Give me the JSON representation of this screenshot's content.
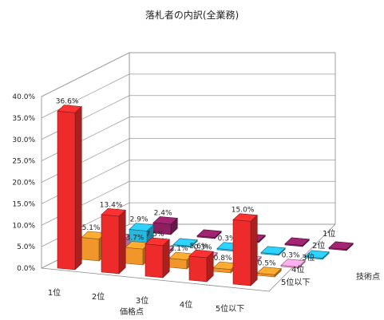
{
  "chart_data": {
    "type": "bar3d",
    "title": "落札者の内訳(全業務)",
    "x_axis_label": "価格点",
    "depth_axis_label": "技術点",
    "x_categories": [
      "1位",
      "2位",
      "3位",
      "4位",
      "5位以下"
    ],
    "depth_categories": [
      "1位",
      "2位",
      "3位",
      "4位",
      "5位以下"
    ],
    "y_ticks": [
      "0.0%",
      "5.0%",
      "10.0%",
      "15.0%",
      "20.0%",
      "25.0%",
      "30.0%",
      "35.0%",
      "40.0%"
    ],
    "y_range": [
      0,
      40
    ],
    "grid": true,
    "series": [
      {
        "depth": "1位",
        "color": "#ee2b2b",
        "values": [
          36.6,
          13.4,
          7.5,
          5.6,
          15.0
        ],
        "labels": [
          "36.6%",
          "13.4%",
          "7.5%",
          "5.6%",
          "15.0%"
        ]
      },
      {
        "depth": "2位",
        "color": "#f0962a",
        "values": [
          5.1,
          3.7,
          2.1,
          0.8,
          0.5
        ],
        "labels": [
          "5.1%",
          "3.7%",
          "2.1%",
          "0.8%",
          "0.5%"
        ]
      },
      {
        "depth": "3位",
        "color": "#f39ad0",
        "values": [
          2.7,
          0.8,
          0.3,
          0.0,
          0.3
        ],
        "labels": [
          "2.7%",
          "0.8%",
          "0.3%",
          "",
          "0.3%"
        ]
      },
      {
        "depth": "4位",
        "color": "#27b8e0",
        "values": [
          2.9,
          0.0,
          0.3,
          0.0,
          0.0
        ],
        "labels": [
          "2.9%",
          "",
          "0.3%",
          "",
          ""
        ]
      },
      {
        "depth": "5位以下",
        "color": "#8e1f63",
        "values": [
          2.4,
          0.0,
          0.0,
          0.0,
          0.0
        ],
        "labels": [
          "2.4%",
          "",
          "",
          "",
          ""
        ]
      }
    ]
  }
}
